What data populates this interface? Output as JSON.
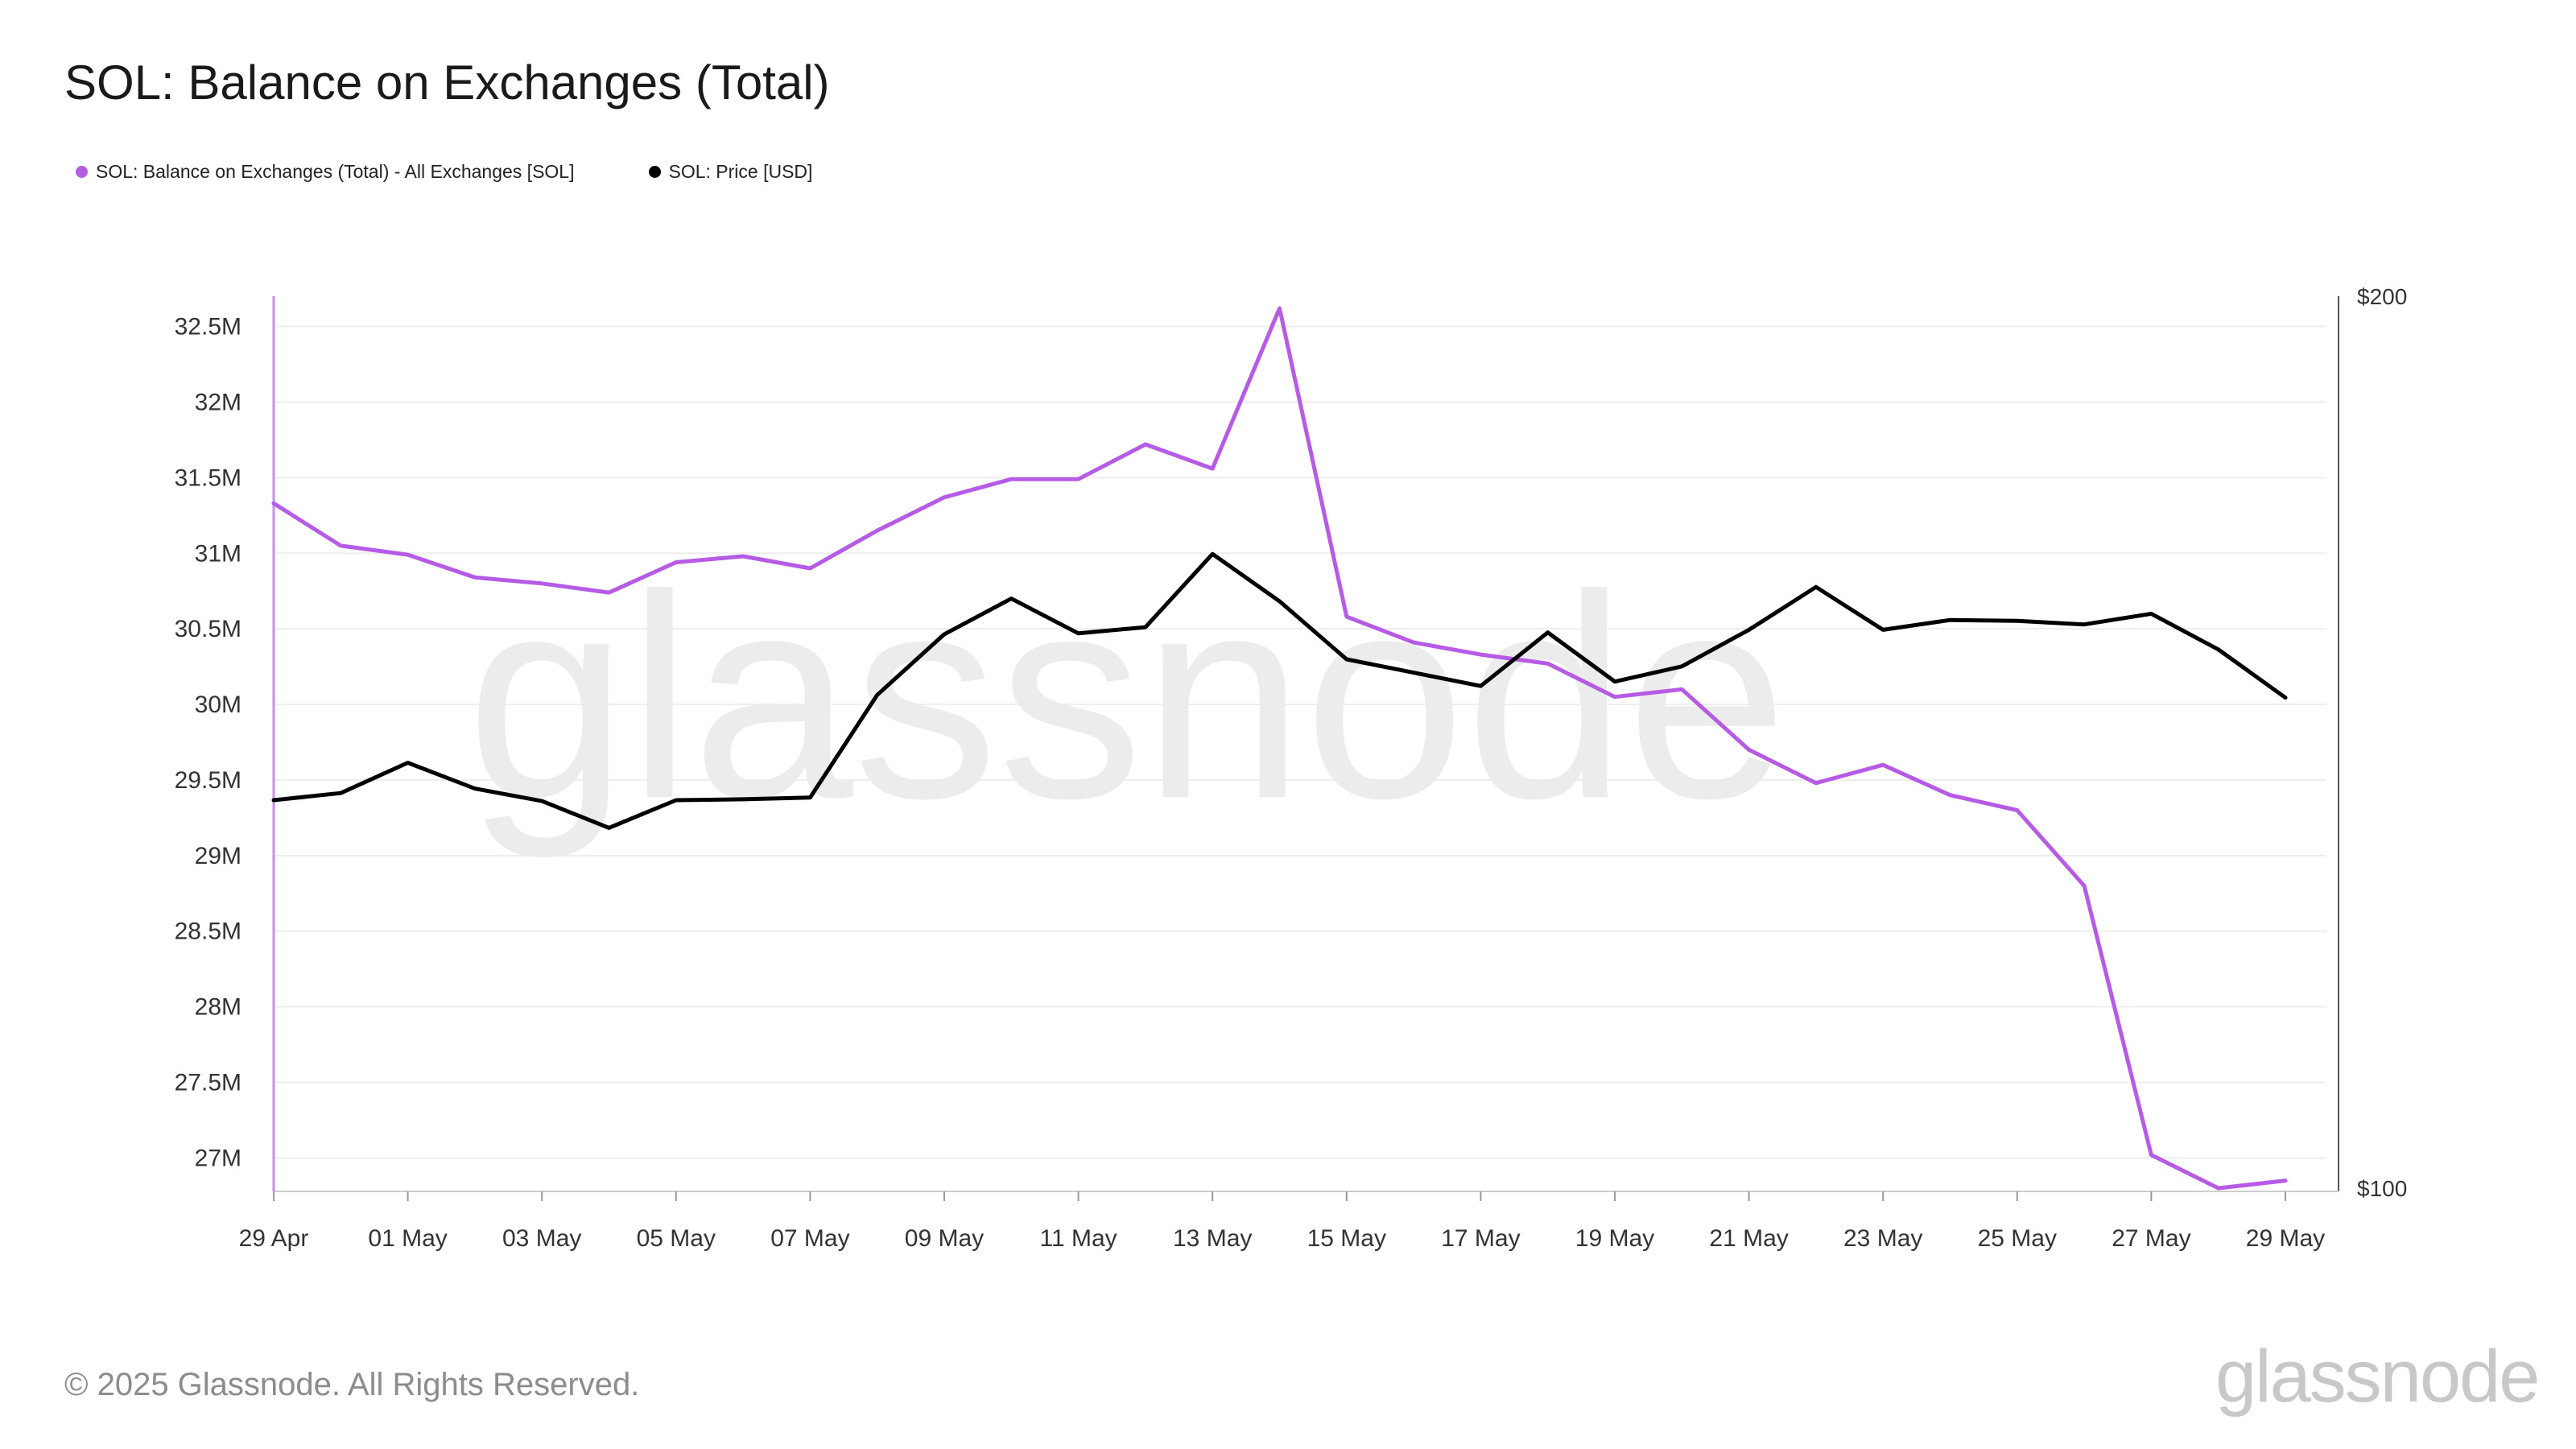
{
  "title": "SOL: Balance on Exchanges (Total)",
  "footer": "© 2025 Glassnode. All Rights Reserved.",
  "brand": "glassnode",
  "watermark": "glassnode",
  "legend": [
    {
      "label": "SOL: Balance on Exchanges (Total) - All Exchanges [SOL]",
      "color": "#b65be6"
    },
    {
      "label": "SOL: Price [USD]",
      "color": "#000000"
    }
  ],
  "chart_data": {
    "type": "line",
    "title": "SOL: Balance on Exchanges (Total)",
    "x": [
      "2025-04-29",
      "2025-04-30",
      "2025-05-01",
      "2025-05-02",
      "2025-05-03",
      "2025-05-04",
      "2025-05-05",
      "2025-05-06",
      "2025-05-07",
      "2025-05-08",
      "2025-05-09",
      "2025-05-10",
      "2025-05-11",
      "2025-05-12",
      "2025-05-13",
      "2025-05-14",
      "2025-05-15",
      "2025-05-16",
      "2025-05-17",
      "2025-05-18",
      "2025-05-19",
      "2025-05-20",
      "2025-05-21",
      "2025-05-22",
      "2025-05-23",
      "2025-05-24",
      "2025-05-25",
      "2025-05-26",
      "2025-05-27",
      "2025-05-28",
      "2025-05-29"
    ],
    "xticks": [
      "29 Apr",
      "01 May",
      "03 May",
      "05 May",
      "07 May",
      "09 May",
      "11 May",
      "13 May",
      "15 May",
      "17 May",
      "19 May",
      "21 May",
      "23 May",
      "25 May",
      "27 May",
      "29 May"
    ],
    "series": [
      {
        "name": "SOL: Balance on Exchanges (Total) - All Exchanges [SOL]",
        "axis": "left",
        "color": "#b65be6",
        "values": [
          31.33,
          31.05,
          30.99,
          30.84,
          30.8,
          30.74,
          30.94,
          30.98,
          30.9,
          31.15,
          31.37,
          31.49,
          31.49,
          31.72,
          31.56,
          32.62,
          30.58,
          30.41,
          30.33,
          30.27,
          30.05,
          30.1,
          29.7,
          29.48,
          29.6,
          29.4,
          29.3,
          28.8,
          27.02,
          26.8,
          26.85
        ]
      },
      {
        "name": "SOL: Price [USD]",
        "axis": "right",
        "color": "#000000",
        "values": [
          143.5,
          144.3,
          147.7,
          144.8,
          143.4,
          140.4,
          143.5,
          143.6,
          143.8,
          155.3,
          162.1,
          166.1,
          162.2,
          162.9,
          171.1,
          165.8,
          159.3,
          157.8,
          156.3,
          162.3,
          156.8,
          158.5,
          162.6,
          167.4,
          162.6,
          163.7,
          163.6,
          163.2,
          164.4,
          160.4,
          155.0
        ]
      }
    ],
    "y_left": {
      "ticks": [
        "27M",
        "27.5M",
        "28M",
        "28.5M",
        "29M",
        "29.5M",
        "30M",
        "30.5M",
        "31M",
        "31.5M",
        "32M",
        "32.5M"
      ],
      "range": [
        26.8,
        32.7
      ],
      "unit": "M SOL"
    },
    "y_right": {
      "ticks": [
        "$100",
        "$200"
      ],
      "range": [
        100,
        200
      ]
    },
    "grid": true,
    "legend_position": "top-left"
  }
}
